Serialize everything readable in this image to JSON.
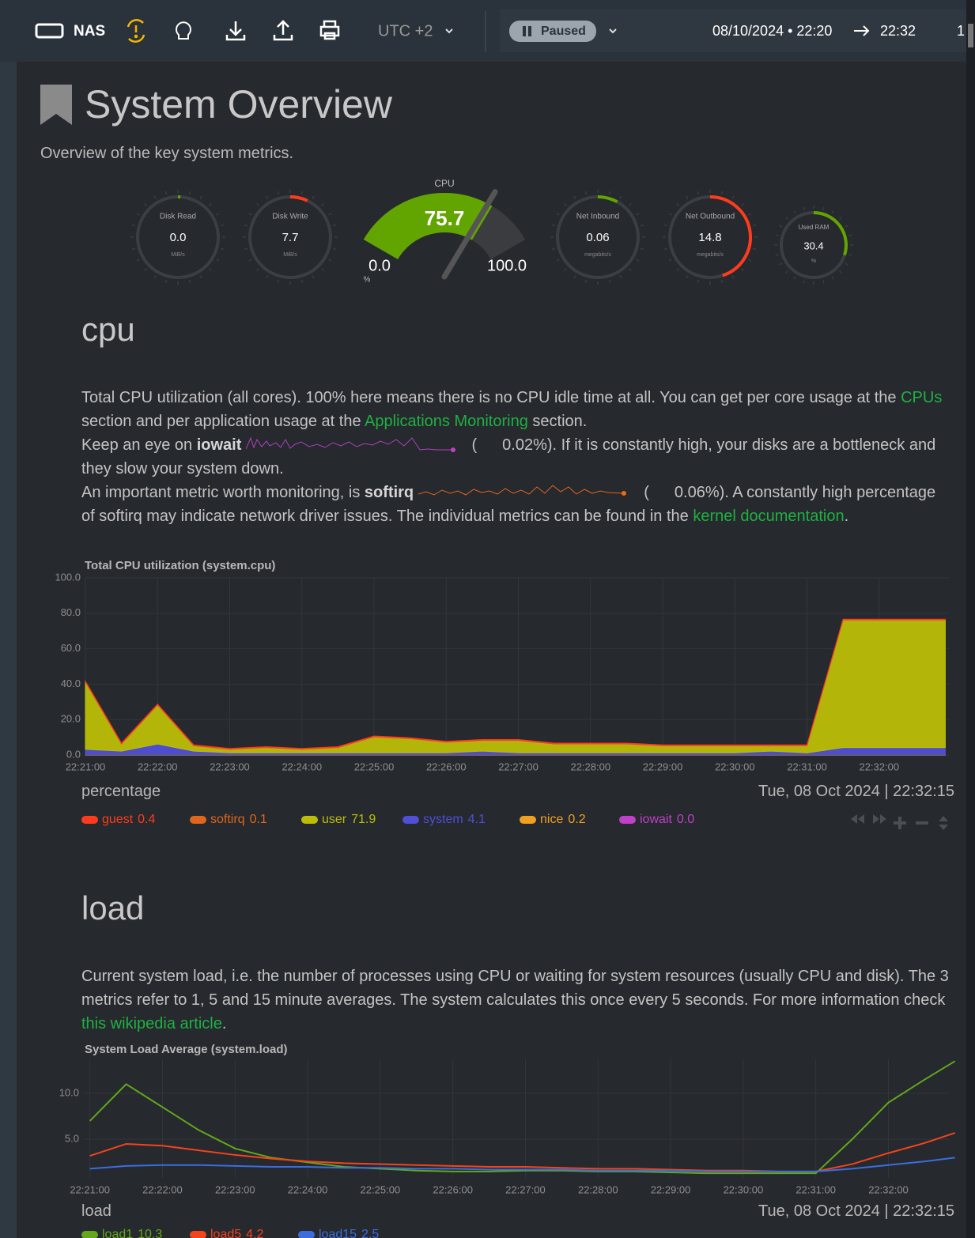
{
  "toolbar": {
    "node": "NAS",
    "timezone": "UTC +2",
    "status": "Paused",
    "range_start": "08/10/2024 • 22:20",
    "range_end": "22:32",
    "overflow": "1"
  },
  "header": {
    "title": "System Overview",
    "subtitle": "Overview of the key system metrics."
  },
  "gauges": [
    {
      "label": "Disk Read",
      "value": "0.0",
      "unit": "MiB/s"
    },
    {
      "label": "Disk Write",
      "value": "7.7",
      "unit": "MiB/s"
    },
    {
      "label": "Net Inbound",
      "value": "0.06",
      "unit": "megabits/s"
    },
    {
      "label": "Net Outbound",
      "value": "14.8",
      "unit": "megabits/s"
    },
    {
      "label": "Used RAM",
      "value": "30.4",
      "unit": "%"
    }
  ],
  "cpu_gauge": {
    "label": "CPU",
    "value": 75.7,
    "min": {
      "value": 0,
      "label": "0.0"
    },
    "max": {
      "value": 100,
      "label": "100.0"
    },
    "unit": "%",
    "color": "#62a400"
  },
  "cpu_section": {
    "heading": "cpu",
    "description": [
      "Total CPU utilization (all cores). 100% here means there is no CPU idle time at all. You can get per core usage at the ",
      "CPUs",
      " section and per application usage at the ",
      "Applications Monitoring",
      " section.",
      "Keep an eye on ",
      "iowait",
      "(",
      "0.02%). If it is constantly high, your disks are a bottleneck and they slow your system down.",
      "An important metric worth monitoring, is ",
      "softirq",
      "(",
      "0.06%). A constantly high percentage of softirq may indicate network driver issues. The individual metrics can be found in the ",
      "kernel documentation",
      "."
    ],
    "chart_data": {
      "type": "area",
      "stacked": true,
      "title": "Total CPU utilization (system.cpu)",
      "units": "percentage",
      "timestamp": "Tue, 08 Oct 2024 | 22:32:15",
      "x": [
        "22:21:00",
        "22:21:30",
        "22:22:00",
        "22:22:30",
        "22:23:00",
        "22:23:30",
        "22:24:00",
        "22:24:30",
        "22:25:00",
        "22:25:30",
        "22:26:00",
        "22:26:30",
        "22:27:00",
        "22:27:30",
        "22:28:00",
        "22:28:30",
        "22:29:00",
        "22:29:30",
        "22:30:00",
        "22:30:30",
        "22:31:00",
        "22:31:30",
        "22:32:00",
        "22:32:30",
        "22:32:55"
      ],
      "xlim": [
        "22:21:00",
        "22:32:58"
      ],
      "xticks": [
        "22:21:00",
        "22:22:00",
        "22:23:00",
        "22:24:00",
        "22:25:00",
        "22:26:00",
        "22:27:00",
        "22:28:00",
        "22:29:00",
        "22:30:00",
        "22:31:00",
        "22:32:00"
      ],
      "ylim": [
        0,
        100
      ],
      "yticks": [
        {
          "value": 0,
          "label": "0.0"
        },
        {
          "value": 20,
          "label": "20.0"
        },
        {
          "value": 40,
          "label": "40.0"
        },
        {
          "value": 60,
          "label": "60.0"
        },
        {
          "value": 80,
          "label": "80.0"
        },
        {
          "value": 100,
          "label": "100.0"
        }
      ],
      "grid": true,
      "series": [
        {
          "name": "guest",
          "current": "0.4",
          "color": "#ff3b1d",
          "values": [
            0.4,
            0.4,
            0.4,
            0.4,
            0.4,
            0.4,
            0.4,
            0.4,
            0.4,
            0.4,
            0.4,
            0.4,
            0.4,
            0.4,
            0.4,
            0.4,
            0.4,
            0.4,
            0.4,
            0.4,
            0.4,
            0.4,
            0.4,
            0.4,
            0.4
          ]
        },
        {
          "name": "softirq",
          "current": "0.1",
          "color": "#e0661c",
          "values": [
            0.1,
            0.1,
            0.1,
            0.1,
            0.1,
            0.1,
            0.1,
            0.1,
            0.1,
            0.1,
            0.1,
            0.1,
            0.1,
            0.1,
            0.1,
            0.1,
            0.1,
            0.1,
            0.1,
            0.1,
            0.1,
            0.1,
            0.1,
            0.1,
            0.1
          ]
        },
        {
          "name": "user",
          "current": "71.9",
          "color": "#bcbd07",
          "values": [
            38,
            4,
            22,
            3,
            2,
            3,
            2,
            3,
            9,
            8,
            6,
            6,
            7,
            5,
            5,
            5,
            4,
            4,
            4,
            3,
            4,
            72,
            72,
            72,
            72
          ]
        },
        {
          "name": "system",
          "current": "4.1",
          "color": "#4f4fd8",
          "values": [
            3,
            2,
            6,
            2,
            1,
            1,
            1,
            1,
            1,
            1,
            1,
            2,
            1,
            1,
            1,
            1,
            1,
            1,
            1,
            2,
            1,
            4,
            4,
            4,
            4
          ]
        },
        {
          "name": "nice",
          "current": "0.2",
          "color": "#f0a020",
          "values": [
            0.2,
            0.2,
            0.2,
            0.2,
            0.2,
            0.2,
            0.2,
            0.2,
            0.2,
            0.2,
            0.2,
            0.2,
            0.2,
            0.2,
            0.2,
            0.2,
            0.2,
            0.2,
            0.2,
            0.2,
            0.2,
            0.2,
            0.2,
            0.2,
            0.2
          ]
        },
        {
          "name": "iowait",
          "current": "0.0",
          "color": "#c040c8",
          "values": [
            0,
            0,
            0,
            0,
            0,
            0,
            0,
            0,
            0,
            0,
            0,
            0,
            0,
            0,
            0,
            0,
            0,
            0,
            0,
            0,
            0,
            0,
            0,
            0,
            0
          ]
        }
      ]
    }
  },
  "load_section": {
    "heading": "load",
    "description": [
      "Current system load, i.e. the number of processes using CPU or waiting for system resources (usually CPU and disk). The 3 metrics refer to 1, 5 and 15 minute averages. The system calculates this once every 5 seconds. For more information check ",
      "this wikipedia article",
      "."
    ],
    "chart_data": {
      "type": "line",
      "title": "System Load Average (system.load)",
      "units": "load",
      "timestamp": "Tue, 08 Oct 2024 | 22:32:15",
      "x": [
        "22:21:00",
        "22:21:30",
        "22:22:00",
        "22:22:30",
        "22:23:00",
        "22:23:30",
        "22:24:00",
        "22:24:30",
        "22:25:00",
        "22:25:30",
        "22:26:00",
        "22:26:30",
        "22:27:00",
        "22:27:30",
        "22:28:00",
        "22:28:30",
        "22:29:00",
        "22:29:30",
        "22:30:00",
        "22:30:30",
        "22:31:00",
        "22:31:30",
        "22:32:00",
        "22:32:30",
        "22:32:55"
      ],
      "xlim": [
        "22:20:55",
        "22:32:50"
      ],
      "xticks": [
        "22:21:00",
        "22:22:00",
        "22:23:00",
        "22:24:00",
        "22:25:00",
        "22:26:00",
        "22:27:00",
        "22:28:00",
        "22:29:00",
        "22:30:00",
        "22:31:00",
        "22:32:00"
      ],
      "ylim": [
        0.8,
        13.7
      ],
      "yticks": [
        {
          "value": 5,
          "label": "5.0"
        },
        {
          "value": 10,
          "label": "10.0"
        }
      ],
      "grid": true,
      "series": [
        {
          "name": "load1",
          "current": "10.3",
          "color": "#62a81a",
          "values": [
            7,
            11,
            8.5,
            6,
            4,
            3,
            2.5,
            2,
            1.8,
            1.6,
            1.5,
            1.5,
            1.6,
            1.6,
            1.5,
            1.5,
            1.4,
            1.3,
            1.3,
            1.3,
            1.3,
            5,
            9,
            11.5,
            13.5
          ]
        },
        {
          "name": "load5",
          "current": "4.2",
          "color": "#f4441c",
          "values": [
            3.2,
            4.5,
            4.3,
            3.8,
            3.3,
            2.9,
            2.6,
            2.4,
            2.3,
            2.2,
            2.1,
            2,
            2,
            1.9,
            1.8,
            1.8,
            1.7,
            1.6,
            1.6,
            1.5,
            1.5,
            2.3,
            3.5,
            4.6,
            5.7
          ]
        },
        {
          "name": "load15",
          "current": "2.5",
          "color": "#3a6ee0",
          "values": [
            1.8,
            2.1,
            2.2,
            2.2,
            2.1,
            2,
            2,
            1.9,
            1.9,
            1.8,
            1.8,
            1.7,
            1.7,
            1.7,
            1.6,
            1.6,
            1.6,
            1.5,
            1.5,
            1.5,
            1.5,
            1.8,
            2.2,
            2.6,
            3
          ]
        }
      ]
    }
  }
}
